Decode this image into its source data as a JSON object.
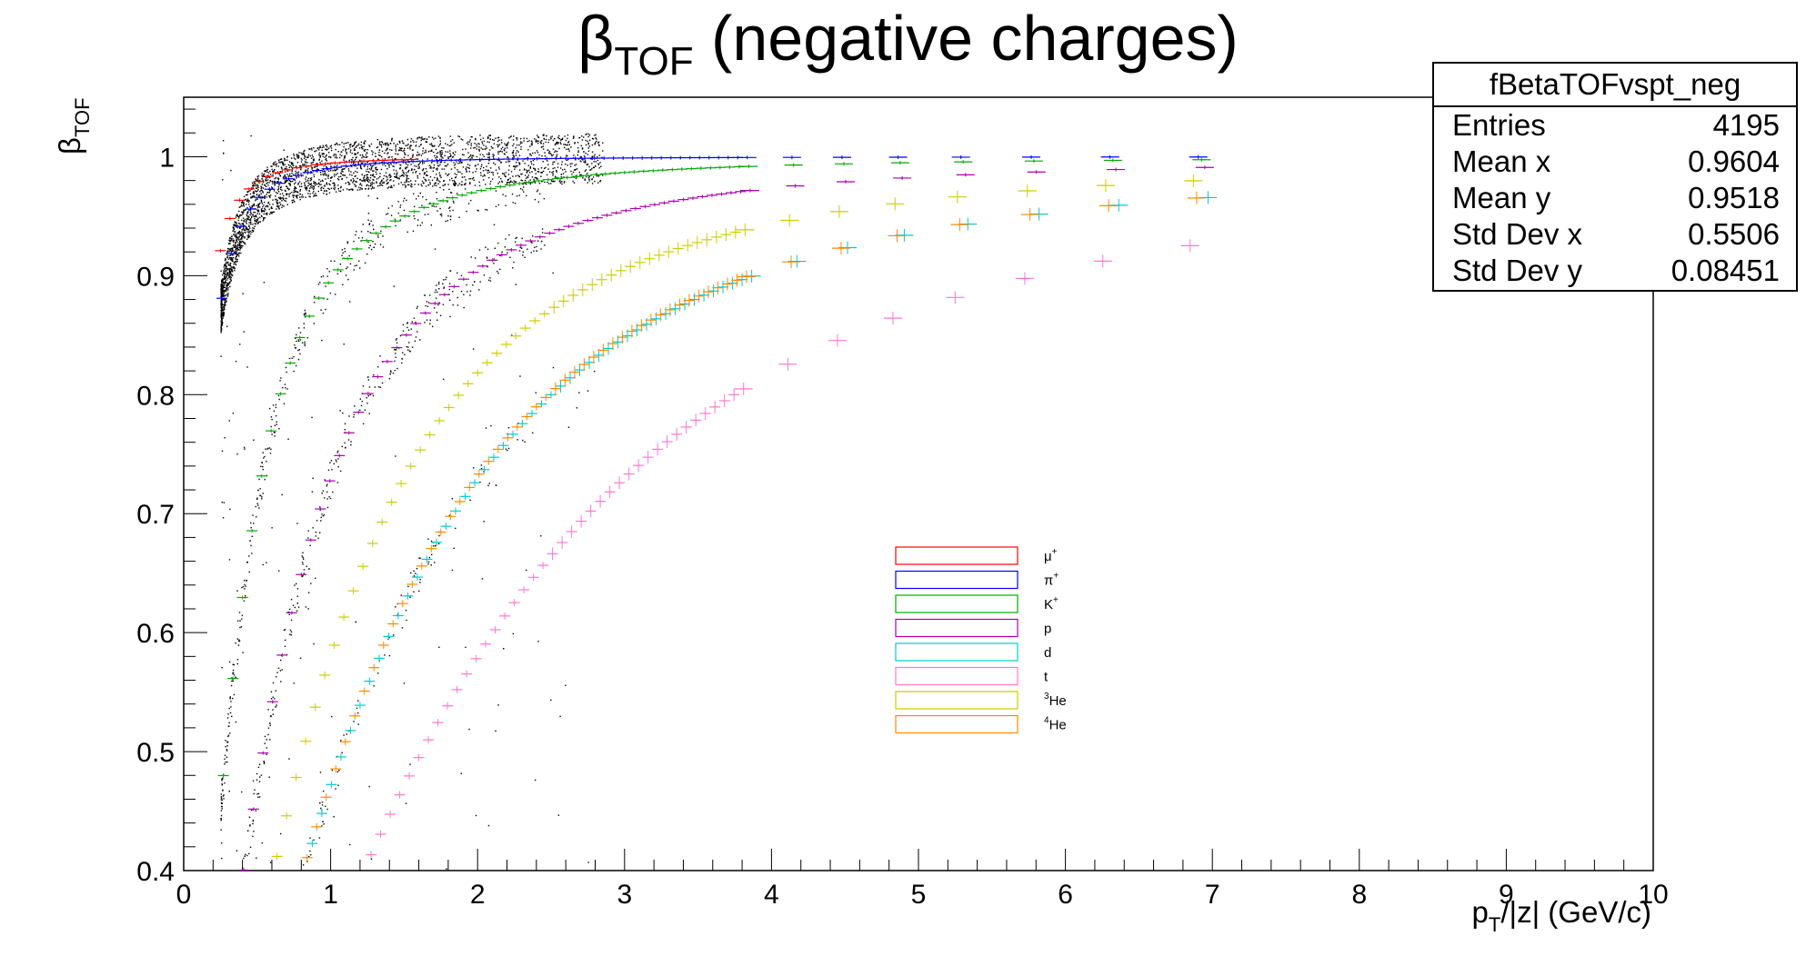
{
  "title_main": "β",
  "title_sub": "TOF",
  "title_rest": " (negative charges)",
  "ylabel_main": "β",
  "ylabel_sub": "TOF",
  "xlabel_pre": "p",
  "xlabel_sub": "T",
  "xlabel_post": "/|z| (GeV/c)",
  "stats": {
    "name": "fBetaTOFvspt_neg",
    "rows": [
      {
        "label": "Entries",
        "value": "4195"
      },
      {
        "label": "Mean x",
        "value": "0.9604"
      },
      {
        "label": "Mean y",
        "value": "0.9518"
      },
      {
        "label": "Std Dev x",
        "value": "0.5506"
      },
      {
        "label": "Std Dev y",
        "value": "0.08451"
      }
    ]
  },
  "chart_data": {
    "type": "scatter",
    "xlim": [
      0,
      10
    ],
    "ylim": [
      0.4,
      1.05
    ],
    "x_ticks": [
      "0",
      "1",
      "2",
      "3",
      "4",
      "5",
      "6",
      "7",
      "8",
      "9",
      "10"
    ],
    "y_ticks": [
      "0.4",
      "0.5",
      "0.6",
      "0.7",
      "0.8",
      "0.9",
      "1"
    ],
    "y_tick_values": [
      0.4,
      0.5,
      0.6,
      0.7,
      0.8,
      0.9,
      1.0
    ],
    "grid": false,
    "legend_position": "center",
    "series": [
      {
        "name": "μ+",
        "label_main": "μ",
        "label_sup": "+",
        "color": "#ff0000",
        "mass": 0.1057,
        "x_max": 1.6,
        "step": 0.05
      },
      {
        "name": "π+",
        "label_main": "π",
        "label_sup": "+",
        "color": "#0000ff",
        "mass": 0.1396,
        "x_max": 7.3,
        "step": 0.05
      },
      {
        "name": "K+",
        "label_main": "K",
        "label_sup": "+",
        "color": "#00aa00",
        "mass": 0.4937,
        "x_max": 7.3,
        "step": 0.05
      },
      {
        "name": "p",
        "label_main": "p",
        "label_sup": "",
        "color": "#aa00aa",
        "mass": 0.9383,
        "x_max": 7.3,
        "step": 0.05
      },
      {
        "name": "d",
        "label_main": "d",
        "label_sup": "",
        "color": "#00cccc",
        "mass": 1.8756,
        "x_max": 7.3,
        "step": 0.05
      },
      {
        "name": "t",
        "label_main": "t",
        "label_sup": "",
        "color": "#ff77cc",
        "mass": 2.8089,
        "x_max": 7.3,
        "step": 0.05
      },
      {
        "name": "3He",
        "label_main": "He",
        "label_sup": "3",
        "color": "#cccc00",
        "mass": 1.4047,
        "x_max": 7.3,
        "step": 0.05
      },
      {
        "name": "4He",
        "label_main": "He",
        "label_sup": "4",
        "color": "#ff8800",
        "mass": 1.8638,
        "x_max": 7.3,
        "step": 0.05
      }
    ],
    "background_points": 4195
  }
}
